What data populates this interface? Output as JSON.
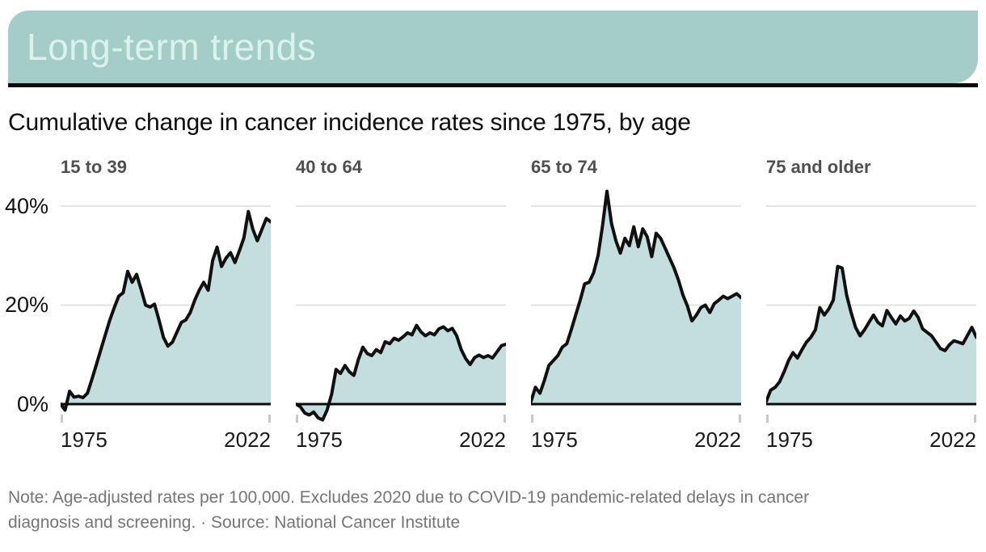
{
  "header": {
    "tag_label": "Long-term trends",
    "bg_color": "#a4cdc8",
    "text_color": "#d9f2ec"
  },
  "title": "Cumulative change in cancer incidence rates since 1975, by age",
  "note": {
    "line1": "Note: Age-adjusted rates per 100,000. Excludes 2020 due to COVID-19 pandemic-related delays in cancer",
    "line2": "diagnosis and screening. · Source: National Cancer Institute"
  },
  "chart_data": {
    "type": "area",
    "title": "Cumulative change in cancer incidence rates since 1975, by age",
    "unit": "percent cumulative change since 1975",
    "x_start": 1975,
    "x_end": 2022,
    "excluded_years": [
      2020
    ],
    "x_tick_labels": [
      "1975",
      "2022"
    ],
    "y_tick_values": [
      0,
      20,
      40
    ],
    "y_tick_labels": [
      "0%",
      "20%",
      "40%"
    ],
    "ylim": [
      -5,
      45
    ],
    "grid": "horizontal",
    "legend": "none",
    "panels": [
      {
        "label": "15 to 39",
        "values": [
          0,
          -1.2,
          2.6,
          1.4,
          1.6,
          1.3,
          2.2,
          5,
          8,
          11,
          14,
          17,
          19.5,
          21.8,
          22.5,
          26.8,
          24.6,
          26.2,
          23.2,
          20,
          19.6,
          20.2,
          17,
          13.5,
          11.7,
          12.5,
          14.5,
          16.5,
          17,
          18.5,
          21,
          23,
          24.6,
          23,
          29,
          31.7,
          27.8,
          29.5,
          30.6,
          28.6,
          31,
          33.6,
          38.9,
          35.3,
          33,
          37.5,
          36.8
        ]
      },
      {
        "label": "40 to 64",
        "values": [
          0,
          -0.5,
          -1.8,
          -2.2,
          -1.6,
          -2.8,
          -3.2,
          -1.2,
          2,
          7,
          6.2,
          7.8,
          6.5,
          5.8,
          9,
          11.5,
          10.2,
          9.8,
          11,
          10.4,
          12.6,
          12.2,
          13.3,
          12.9,
          13.6,
          14.4,
          14,
          15.9,
          14.6,
          13.8,
          14.4,
          14,
          15.2,
          15.6,
          14.8,
          15.3,
          13.8,
          11,
          9.2,
          8,
          9.4,
          9.9,
          9.4,
          9.8,
          9.3,
          11.8,
          12.1
        ]
      },
      {
        "label": "65 to 74",
        "values": [
          0.5,
          3.4,
          2.2,
          4.8,
          7.8,
          8.8,
          9.8,
          11.5,
          12.2,
          15,
          18,
          21,
          24.3,
          24.6,
          26.5,
          30,
          36,
          43,
          36.5,
          33,
          30.5,
          33.5,
          32,
          35.8,
          31.8,
          35.4,
          33.8,
          29.8,
          34.5,
          33.5,
          31.5,
          29.5,
          27.5,
          25,
          22,
          19.8,
          16.8,
          18,
          19.5,
          20,
          18.5,
          20.3,
          21,
          21.8,
          21.3,
          22.3,
          21.5
        ]
      },
      {
        "label": "75 and older",
        "values": [
          0.5,
          2.8,
          3.4,
          4.5,
          6.5,
          8.8,
          10.4,
          9.3,
          11,
          12.5,
          13.5,
          15,
          19.5,
          18,
          19.2,
          21,
          27.8,
          27.5,
          22,
          18.5,
          15.5,
          13.8,
          15,
          16.5,
          18,
          16.5,
          15.8,
          18.9,
          17.5,
          16.2,
          17.8,
          16.8,
          17.3,
          18.8,
          17.5,
          15.2,
          14.5,
          13.8,
          12.5,
          11.2,
          10.8,
          12,
          12.8,
          12.5,
          12.2,
          15.5,
          13.5
        ]
      }
    ],
    "colors": {
      "area_fill": "#c3dedd",
      "line": "#101010",
      "gridline": "#e3e3e3",
      "baseline": "#0b0b0b",
      "tick": "#c9c9c9"
    }
  }
}
